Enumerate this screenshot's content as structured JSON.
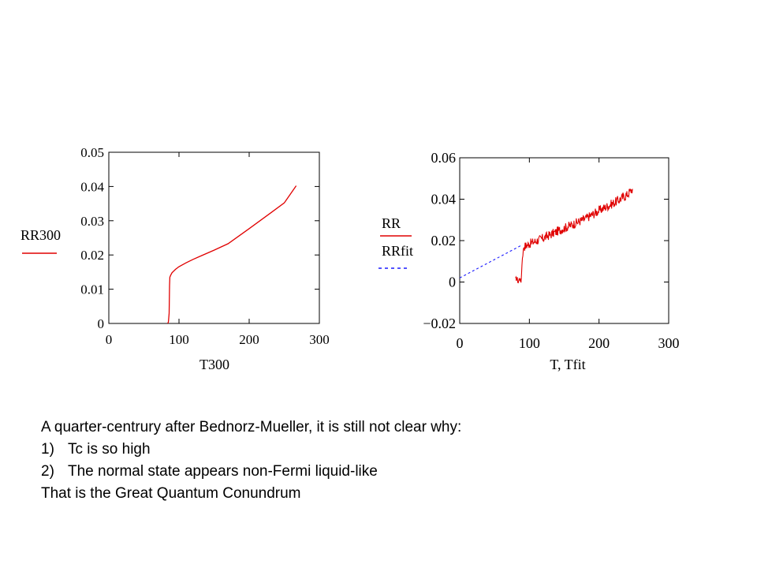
{
  "chart_data": [
    {
      "type": "line",
      "xlabel": "T300",
      "xticks": [
        "0",
        "100",
        "200",
        "300"
      ],
      "yticks": [
        "0",
        "0.01",
        "0.02",
        "0.03",
        "0.04",
        "0.05"
      ],
      "xlim": [
        0,
        300
      ],
      "ylim": [
        0,
        0.05
      ],
      "grid": false,
      "legend_position": "left",
      "series": [
        {
          "name": "RR300",
          "color": "#e00000",
          "style": "solid",
          "x": [
            84,
            85,
            86,
            86.5,
            87,
            88,
            90,
            95,
            100,
            110,
            120,
            130,
            150,
            170,
            200,
            230,
            250,
            267
          ],
          "y": [
            0,
            0.0005,
            0.003,
            0.011,
            0.0135,
            0.014,
            0.0148,
            0.0158,
            0.0166,
            0.0177,
            0.0187,
            0.0196,
            0.0214,
            0.0233,
            0.0277,
            0.0322,
            0.0352,
            0.0402
          ]
        }
      ]
    },
    {
      "type": "line",
      "xlabel": "T, Tfit",
      "xticks": [
        "0",
        "100",
        "200",
        "300"
      ],
      "yticks": [
        "−0.02",
        "0",
        "0.02",
        "0.04",
        "0.06"
      ],
      "xlim": [
        0,
        300
      ],
      "ylim": [
        -0.02,
        0.06
      ],
      "grid": false,
      "legend_position": "left",
      "series": [
        {
          "name": "RR",
          "color": "#e00000",
          "style": "solid",
          "noisy": true,
          "x": [
            80,
            82,
            84,
            86,
            88,
            90,
            92,
            95,
            100,
            120,
            140,
            160,
            180,
            200,
            220,
            240,
            248
          ],
          "y": [
            0.001,
            0.002,
            0.0,
            0.002,
            0.0,
            0.012,
            0.017,
            0.0175,
            0.0185,
            0.0212,
            0.0245,
            0.0275,
            0.0305,
            0.0345,
            0.038,
            0.042,
            0.045
          ]
        },
        {
          "name": "RRfit",
          "color": "#1a1aff",
          "style": "dashed",
          "x": [
            0,
            90
          ],
          "y": [
            0.002,
            0.018
          ]
        }
      ]
    }
  ],
  "caption": {
    "intro": "A quarter-centrury after Bednorz-Mueller, it is still not clear why:",
    "items": [
      {
        "num": "1)",
        "text": "Tc is so high"
      },
      {
        "num": "2)",
        "text": "The normal state appears non-Fermi liquid-like"
      }
    ],
    "closing": "That is the Great Quantum Conundrum"
  }
}
